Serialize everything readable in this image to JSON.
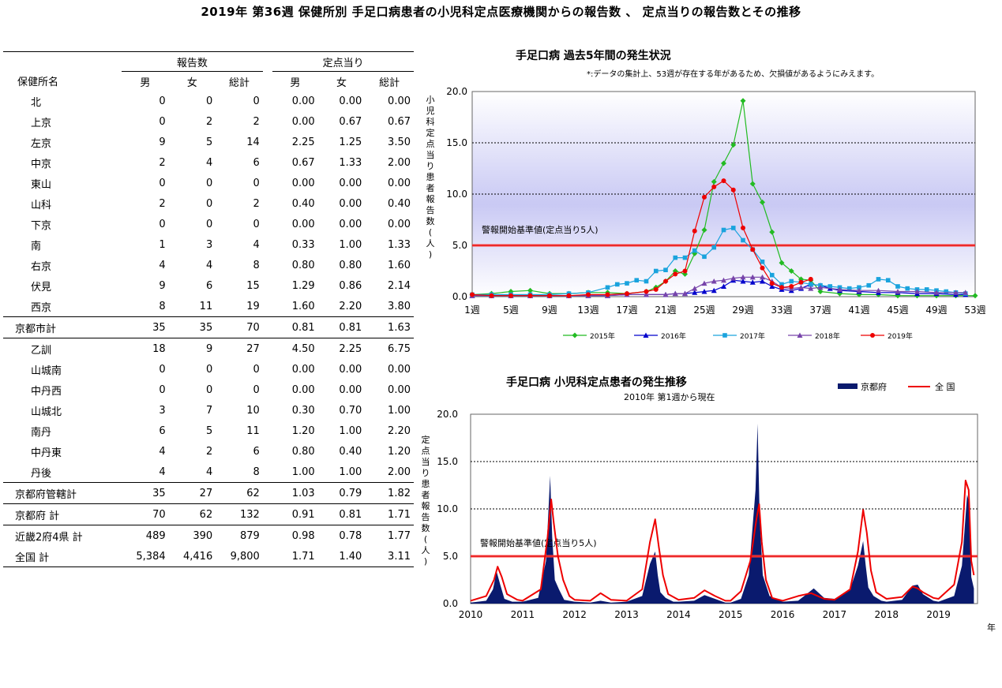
{
  "title": "2019年 第36週 保健所別 手足口病患者の小児科定点医療機関からの報告数 、 定点当りの報告数とその推移",
  "table": {
    "group_headers": [
      "報告数",
      "定点当り"
    ],
    "col_headers": [
      "保健所名",
      "男",
      "女",
      "総計",
      "男",
      "女",
      "総計"
    ],
    "rows": [
      {
        "name": "北",
        "type": "item",
        "v": [
          "0",
          "0",
          "0",
          "0.00",
          "0.00",
          "0.00"
        ]
      },
      {
        "name": "上京",
        "type": "item",
        "v": [
          "0",
          "2",
          "2",
          "0.00",
          "0.67",
          "0.67"
        ]
      },
      {
        "name": "左京",
        "type": "item",
        "v": [
          "9",
          "5",
          "14",
          "2.25",
          "1.25",
          "3.50"
        ]
      },
      {
        "name": "中京",
        "type": "item",
        "v": [
          "2",
          "4",
          "6",
          "0.67",
          "1.33",
          "2.00"
        ]
      },
      {
        "name": "東山",
        "type": "item",
        "v": [
          "0",
          "0",
          "0",
          "0.00",
          "0.00",
          "0.00"
        ]
      },
      {
        "name": "山科",
        "type": "item",
        "v": [
          "2",
          "0",
          "2",
          "0.40",
          "0.00",
          "0.40"
        ]
      },
      {
        "name": "下京",
        "type": "item",
        "v": [
          "0",
          "0",
          "0",
          "0.00",
          "0.00",
          "0.00"
        ]
      },
      {
        "name": "南",
        "type": "item",
        "v": [
          "1",
          "3",
          "4",
          "0.33",
          "1.00",
          "1.33"
        ]
      },
      {
        "name": "右京",
        "type": "item",
        "v": [
          "4",
          "4",
          "8",
          "0.80",
          "0.80",
          "1.60"
        ]
      },
      {
        "name": "伏見",
        "type": "item",
        "v": [
          "9",
          "6",
          "15",
          "1.29",
          "0.86",
          "2.14"
        ]
      },
      {
        "name": "西京",
        "type": "item",
        "v": [
          "8",
          "11",
          "19",
          "1.60",
          "2.20",
          "3.80"
        ]
      },
      {
        "name": "京都市計",
        "type": "total",
        "v": [
          "35",
          "35",
          "70",
          "0.81",
          "0.81",
          "1.63"
        ]
      },
      {
        "name": "乙訓",
        "type": "item",
        "v": [
          "18",
          "9",
          "27",
          "4.50",
          "2.25",
          "6.75"
        ]
      },
      {
        "name": "山城南",
        "type": "item",
        "v": [
          "0",
          "0",
          "0",
          "0.00",
          "0.00",
          "0.00"
        ]
      },
      {
        "name": "中丹西",
        "type": "item",
        "v": [
          "0",
          "0",
          "0",
          "0.00",
          "0.00",
          "0.00"
        ]
      },
      {
        "name": "山城北",
        "type": "item",
        "v": [
          "3",
          "7",
          "10",
          "0.30",
          "0.70",
          "1.00"
        ]
      },
      {
        "name": "南丹",
        "type": "item",
        "v": [
          "6",
          "5",
          "11",
          "1.20",
          "1.00",
          "2.20"
        ]
      },
      {
        "name": "中丹東",
        "type": "item",
        "v": [
          "4",
          "2",
          "6",
          "0.80",
          "0.40",
          "1.20"
        ]
      },
      {
        "name": "丹後",
        "type": "item",
        "v": [
          "4",
          "4",
          "8",
          "1.00",
          "1.00",
          "2.00"
        ]
      },
      {
        "name": "京都府管轄計",
        "type": "total",
        "v": [
          "35",
          "27",
          "62",
          "1.03",
          "0.79",
          "1.82"
        ]
      },
      {
        "name": "京都府 計",
        "type": "total",
        "v": [
          "70",
          "62",
          "132",
          "0.91",
          "0.81",
          "1.71"
        ]
      },
      {
        "name": "近畿2府4県 計",
        "type": "total2",
        "v": [
          "489",
          "390",
          "879",
          "0.98",
          "0.78",
          "1.77"
        ]
      },
      {
        "name": "全国 計",
        "type": "total2",
        "v": [
          "5,384",
          "4,416",
          "9,800",
          "1.71",
          "1.40",
          "3.11"
        ]
      }
    ]
  },
  "chart_data": [
    {
      "type": "line",
      "title": "手足口病 過去5年間の発生状況",
      "note": "*:データの集計上、53週が存在する年があるため、欠損値があるようにみえます。",
      "ylabel": "小児科定点当り患者報告数(人)",
      "ylim": [
        0,
        20
      ],
      "yticks": [
        "0.0",
        "5.0",
        "10.0",
        "15.0",
        "20.0"
      ],
      "xticks": [
        "1週",
        "5週",
        "9週",
        "13週",
        "17週",
        "21週",
        "25週",
        "29週",
        "33週",
        "37週",
        "41週",
        "45週",
        "49週",
        "53週"
      ],
      "xlim": [
        1,
        53
      ],
      "threshold": {
        "value": 5,
        "label": "警報開始基準値(定点当り5人)"
      },
      "series": [
        {
          "name": "2015年",
          "color": "#22bb22",
          "marker": "diamond",
          "x": [
            1,
            3,
            5,
            7,
            9,
            11,
            13,
            15,
            17,
            19,
            20,
            21,
            22,
            23,
            24,
            25,
            26,
            27,
            28,
            29,
            30,
            31,
            32,
            33,
            34,
            35,
            36,
            37,
            39,
            41,
            43,
            45,
            47,
            49,
            51,
            53
          ],
          "values": [
            0.2,
            0.3,
            0.5,
            0.6,
            0.3,
            0.3,
            0.4,
            0.4,
            0.3,
            0.5,
            0.9,
            1.5,
            2.5,
            2.2,
            4.2,
            6.5,
            11.2,
            13,
            14.8,
            19.1,
            11,
            9.2,
            6.3,
            3.3,
            2.5,
            1.7,
            1.6,
            0.5,
            0.3,
            0.2,
            0.2,
            0.1,
            0.1,
            0.1,
            0.1,
            0.1
          ]
        },
        {
          "name": "2016年",
          "color": "#0000cc",
          "marker": "triangle",
          "x": [
            1,
            3,
            5,
            7,
            9,
            11,
            13,
            15,
            17,
            19,
            21,
            22,
            23,
            24,
            25,
            26,
            27,
            28,
            29,
            30,
            31,
            32,
            33,
            34,
            35,
            36,
            37,
            38,
            39,
            41,
            43,
            45,
            47,
            49,
            51,
            52
          ],
          "values": [
            0.1,
            0.1,
            0.1,
            0.1,
            0.1,
            0.1,
            0.1,
            0.1,
            0.2,
            0.2,
            0.2,
            0.3,
            0.3,
            0.4,
            0.5,
            0.6,
            1.0,
            1.6,
            1.5,
            1.4,
            1.5,
            1.0,
            0.7,
            0.6,
            0.8,
            1.2,
            1.1,
            0.8,
            0.6,
            0.5,
            0.4,
            0.4,
            0.3,
            0.3,
            0.2,
            0.2
          ]
        },
        {
          "name": "2017年",
          "color": "#1aa3dd",
          "marker": "square",
          "x": [
            1,
            3,
            5,
            7,
            9,
            11,
            13,
            15,
            16,
            17,
            18,
            19,
            20,
            21,
            22,
            23,
            24,
            25,
            26,
            27,
            28,
            29,
            30,
            31,
            32,
            33,
            34,
            35,
            36,
            37,
            38,
            39,
            40,
            41,
            42,
            43,
            44,
            45,
            46,
            47,
            48,
            49,
            50,
            51,
            52
          ],
          "values": [
            0.2,
            0.2,
            0.2,
            0.2,
            0.2,
            0.3,
            0.4,
            0.9,
            1.2,
            1.3,
            1.6,
            1.5,
            2.5,
            2.6,
            3.8,
            3.8,
            4.5,
            3.9,
            4.8,
            6.5,
            6.7,
            5.5,
            4.6,
            3.4,
            2.1,
            1.2,
            1.5,
            1.4,
            1.2,
            1.1,
            1.0,
            0.9,
            0.8,
            0.9,
            1.1,
            1.7,
            1.6,
            1.0,
            0.8,
            0.7,
            0.7,
            0.6,
            0.5,
            0.4,
            0.3
          ]
        },
        {
          "name": "2018年",
          "color": "#7744aa",
          "marker": "triangle",
          "x": [
            1,
            3,
            5,
            7,
            9,
            11,
            13,
            15,
            17,
            19,
            21,
            22,
            23,
            24,
            25,
            26,
            27,
            28,
            29,
            30,
            31,
            32,
            33,
            34,
            35,
            36,
            37,
            39,
            41,
            43,
            45,
            47,
            49,
            51,
            52
          ],
          "values": [
            0.1,
            0.1,
            0.1,
            0.1,
            0.1,
            0.1,
            0.1,
            0.1,
            0.2,
            0.2,
            0.2,
            0.3,
            0.3,
            0.8,
            1.3,
            1.5,
            1.6,
            1.8,
            1.9,
            1.9,
            1.9,
            1.5,
            0.9,
            0.8,
            0.9,
            0.8,
            0.9,
            0.7,
            0.6,
            0.6,
            0.5,
            0.5,
            0.4,
            0.4,
            0.4
          ]
        },
        {
          "name": "2019年",
          "color": "#ee0000",
          "marker": "circle",
          "x": [
            1,
            3,
            5,
            7,
            9,
            11,
            13,
            15,
            17,
            19,
            20,
            21,
            22,
            23,
            24,
            25,
            26,
            27,
            28,
            29,
            30,
            31,
            32,
            33,
            34,
            35,
            36
          ],
          "values": [
            0.2,
            0.1,
            0.1,
            0.1,
            0.1,
            0.1,
            0.2,
            0.2,
            0.3,
            0.5,
            0.7,
            1.5,
            2.2,
            2.5,
            6.4,
            9.7,
            10.7,
            11.3,
            10.4,
            6.7,
            4.6,
            2.8,
            1.3,
            0.9,
            1.0,
            1.4,
            1.7
          ]
        }
      ]
    },
    {
      "type": "area",
      "title": "手足口病 小児科定点患者の発生推移",
      "subtitle": "2010年 第1週から現在",
      "ylabel": "定点当り患者報告数(人)",
      "xlabel": "年",
      "ylim": [
        0,
        20
      ],
      "yticks": [
        "0.0",
        "5.0",
        "10.0",
        "15.0",
        "20.0"
      ],
      "years": [
        "2010",
        "2011",
        "2012",
        "2013",
        "2014",
        "2015",
        "2016",
        "2017",
        "2018",
        "2019"
      ],
      "threshold": {
        "value": 5,
        "label": "警報開始基準値(定点当り5人)"
      },
      "series": [
        {
          "name": "京都府",
          "type": "area",
          "color": "#0a1a6e",
          "x": [
            2010.0,
            2010.3,
            2010.43,
            2010.5,
            2010.57,
            2010.65,
            2010.8,
            2011.0,
            2011.3,
            2011.45,
            2011.53,
            2011.57,
            2011.62,
            2011.7,
            2011.8,
            2012.0,
            2012.3,
            2012.5,
            2012.7,
            2013.0,
            2013.3,
            2013.45,
            2013.55,
            2013.6,
            2013.65,
            2013.75,
            2013.9,
            2014.0,
            2014.3,
            2014.5,
            2014.7,
            2014.9,
            2015.0,
            2015.2,
            2015.35,
            2015.48,
            2015.52,
            2015.56,
            2015.62,
            2015.75,
            2016.0,
            2016.3,
            2016.6,
            2016.8,
            2017.0,
            2017.3,
            2017.45,
            2017.55,
            2017.6,
            2017.65,
            2017.75,
            2017.9,
            2018.0,
            2018.3,
            2018.5,
            2018.6,
            2018.7,
            2018.9,
            2019.0,
            2019.3,
            2019.45,
            2019.55,
            2019.6,
            2019.63,
            2019.68
          ],
          "values": [
            0.1,
            0.3,
            1.5,
            3.4,
            2.0,
            0.5,
            0.2,
            0.2,
            0.6,
            4.5,
            13.5,
            7.0,
            2.5,
            1.5,
            0.4,
            0.2,
            0.1,
            0.3,
            0.1,
            0.2,
            0.8,
            4.2,
            5.5,
            3.0,
            1.2,
            0.6,
            0.2,
            0.2,
            0.3,
            0.9,
            0.5,
            0.1,
            0.1,
            0.5,
            3.0,
            12.0,
            19.0,
            9.0,
            3.0,
            0.8,
            0.2,
            0.3,
            1.6,
            0.6,
            0.5,
            1.5,
            4.0,
            6.6,
            4.0,
            1.7,
            0.8,
            0.3,
            0.2,
            0.4,
            1.9,
            2.0,
            1.0,
            0.3,
            0.2,
            0.8,
            4.0,
            11.5,
            10.5,
            2.8,
            1.6
          ]
        },
        {
          "name": "全 国",
          "type": "line",
          "color": "#ee0000",
          "x": [
            2010.0,
            2010.3,
            2010.45,
            2010.52,
            2010.6,
            2010.7,
            2010.9,
            2011.0,
            2011.35,
            2011.48,
            2011.55,
            2011.6,
            2011.68,
            2011.78,
            2011.9,
            2012.0,
            2012.3,
            2012.5,
            2012.7,
            2013.0,
            2013.3,
            2013.45,
            2013.55,
            2013.62,
            2013.7,
            2013.8,
            2014.0,
            2014.3,
            2014.5,
            2014.7,
            2014.9,
            2015.0,
            2015.2,
            2015.38,
            2015.5,
            2015.55,
            2015.6,
            2015.68,
            2015.8,
            2016.0,
            2016.3,
            2016.55,
            2016.8,
            2017.0,
            2017.3,
            2017.45,
            2017.55,
            2017.62,
            2017.7,
            2017.8,
            2018.0,
            2018.3,
            2018.5,
            2018.6,
            2018.7,
            2018.9,
            2019.0,
            2019.3,
            2019.45,
            2019.52,
            2019.58,
            2019.63,
            2019.68
          ],
          "values": [
            0.3,
            0.8,
            2.5,
            3.9,
            2.8,
            1.0,
            0.4,
            0.3,
            1.5,
            7.0,
            11.0,
            8.5,
            5.0,
            2.5,
            0.8,
            0.4,
            0.3,
            1.1,
            0.4,
            0.3,
            1.5,
            6.5,
            8.9,
            6.0,
            3.0,
            1.0,
            0.4,
            0.6,
            1.4,
            0.8,
            0.3,
            0.3,
            1.3,
            4.5,
            9.0,
            10.5,
            6.5,
            2.5,
            0.6,
            0.3,
            0.8,
            1.1,
            0.5,
            0.4,
            1.5,
            5.5,
            9.9,
            7.5,
            3.5,
            1.2,
            0.5,
            0.7,
            1.8,
            1.6,
            1.2,
            0.6,
            0.5,
            2.0,
            6.5,
            13.0,
            12.0,
            4.5,
            3.0
          ]
        }
      ]
    }
  ]
}
